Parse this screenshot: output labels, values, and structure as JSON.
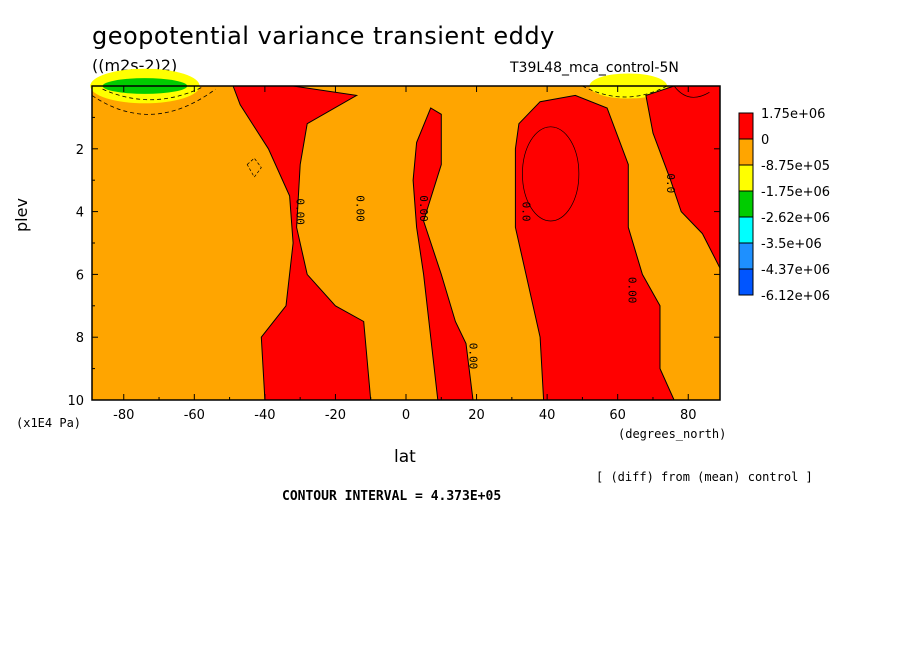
{
  "title": "geopotential variance transient eddy",
  "units": "((m2s-2)2)",
  "run": "T39L48_mca_control-5N",
  "ylabel": "plev",
  "yunit": "(x1E4 Pa)",
  "xlabel": "lat",
  "xunit": "(degrees_north)",
  "diff_note": "[ (diff) from (mean) control ]",
  "contour_interval": "CONTOUR INTERVAL = 4.373E+05",
  "chart_data": {
    "type": "contour",
    "title": "geopotential variance transient eddy",
    "xlabel": "lat",
    "ylabel": "plev",
    "xlim": [
      -89,
      89
    ],
    "ylim": [
      10,
      0
    ],
    "xticks": [
      -80,
      -60,
      -40,
      -20,
      0,
      20,
      40,
      60,
      80
    ],
    "yticks": [
      2,
      4,
      6,
      8,
      10
    ],
    "contour_interval": 437300,
    "colorbar": {
      "levels": [
        "1.75e+06",
        "0",
        "-8.75e+05",
        "-1.75e+06",
        "-2.62e+06",
        "-3.5e+06",
        "-4.37e+06",
        "-6.12e+06"
      ],
      "colors": [
        "#ff0000",
        "#ffa500",
        "#ffff00",
        "#00cc00",
        "#00ffff",
        "#1e90ff",
        "#0055ff",
        "#ffffff"
      ]
    },
    "zero_contour_labels": [
      "0.00",
      "0.00",
      "0.00",
      "0.0",
      "0.00",
      "0.00",
      "0.0",
      "0.0"
    ],
    "positive_regions": [
      {
        "name": "band-40S-10S",
        "outline": [
          [
            -49,
            0
          ],
          [
            -32,
            0
          ],
          [
            -14,
            0.3
          ],
          [
            -28,
            1.2
          ],
          [
            -30,
            2.5
          ],
          [
            -31,
            4.5
          ],
          [
            -28,
            6
          ],
          [
            -20,
            7
          ],
          [
            -12,
            7.5
          ],
          [
            -10,
            10
          ],
          [
            -40,
            10
          ],
          [
            -41,
            8
          ],
          [
            -34,
            7
          ],
          [
            -32,
            5
          ],
          [
            -33,
            3.5
          ],
          [
            -39,
            2
          ],
          [
            -47,
            0.6
          ]
        ]
      },
      {
        "name": "band-0-20N",
        "outline": [
          [
            3,
            1.8
          ],
          [
            7,
            0.7
          ],
          [
            10,
            0.9
          ],
          [
            10,
            2.5
          ],
          [
            5,
            4.3
          ],
          [
            10,
            6
          ],
          [
            14,
            7.5
          ],
          [
            17,
            8.2
          ],
          [
            19,
            10
          ],
          [
            9,
            10
          ],
          [
            7,
            8
          ],
          [
            5,
            6
          ],
          [
            3,
            4.5
          ],
          [
            2,
            3
          ]
        ]
      },
      {
        "name": "band-30N-75N",
        "outline": [
          [
            31,
            2
          ],
          [
            32,
            1.2
          ],
          [
            38,
            0.5
          ],
          [
            48,
            0.3
          ],
          [
            57,
            0.7
          ],
          [
            63,
            2.5
          ],
          [
            63,
            4.5
          ],
          [
            67,
            6
          ],
          [
            72,
            7
          ],
          [
            72,
            9
          ],
          [
            76,
            10
          ],
          [
            39,
            10
          ],
          [
            38,
            8
          ],
          [
            34,
            6
          ],
          [
            31,
            4.5
          ]
        ]
      },
      {
        "name": "band-north-pole",
        "outline": [
          [
            70,
            1.5
          ],
          [
            68,
            0.3
          ],
          [
            76,
            0
          ],
          [
            89,
            0
          ],
          [
            89,
            5.8
          ],
          [
            84,
            4.7
          ],
          [
            78,
            4
          ],
          [
            75,
            3
          ]
        ]
      }
    ],
    "negative_regions": [
      {
        "name": "south-pole-top",
        "level": "-1.75e+06",
        "center": [
          -74,
          0.1
        ]
      },
      {
        "name": "north-pole-top",
        "level": "-8.75e+05",
        "center": [
          63,
          0.05
        ]
      }
    ]
  }
}
